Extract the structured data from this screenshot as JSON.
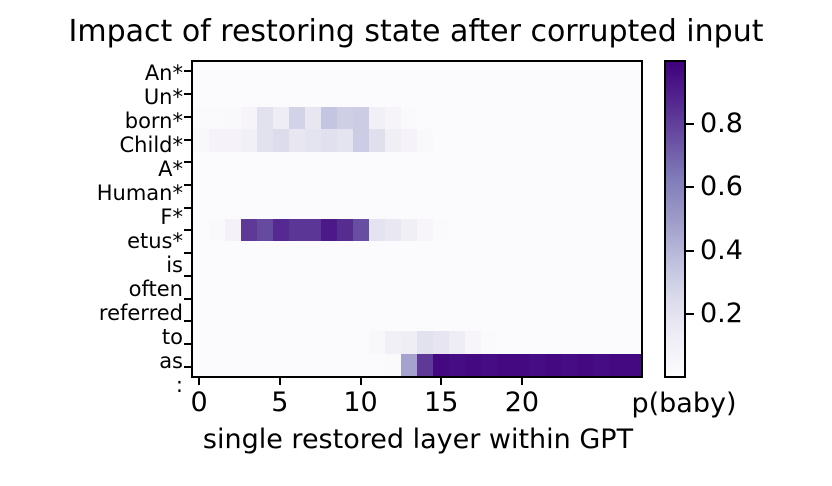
{
  "chart_data": {
    "type": "heatmap",
    "title": "Impact of restoring state after corrupted input",
    "xlabel": "single restored layer within GPT",
    "colorbar_label": "p(baby)",
    "x_ticks": [
      0,
      5,
      10,
      15,
      20
    ],
    "colorbar_ticks": [
      0.2,
      0.4,
      0.6,
      0.8
    ],
    "n_layers": 28,
    "xlim": [
      -0.5,
      27.5
    ],
    "vmin": 0.0,
    "vmax": 1.0,
    "grid": false,
    "legend_position": "colorbar-right",
    "rows": [
      "An*",
      "Un*",
      "born*",
      "Child*",
      "A*",
      "Human*",
      "F*",
      "etus*",
      "is",
      "often",
      "referred",
      "to",
      "as",
      ":"
    ],
    "values": [
      [
        0.01,
        0.01,
        0.01,
        0.01,
        0.01,
        0.01,
        0.01,
        0.01,
        0.01,
        0.01,
        0.01,
        0.01,
        0.01,
        0.01,
        0.01,
        0.01,
        0.01,
        0.01,
        0.01,
        0.01,
        0.01,
        0.01,
        0.01,
        0.01,
        0.01,
        0.01,
        0.01,
        0.01
      ],
      [
        0.01,
        0.01,
        0.01,
        0.01,
        0.01,
        0.01,
        0.01,
        0.01,
        0.01,
        0.01,
        0.01,
        0.01,
        0.01,
        0.01,
        0.01,
        0.01,
        0.01,
        0.01,
        0.01,
        0.01,
        0.01,
        0.01,
        0.01,
        0.01,
        0.01,
        0.01,
        0.01,
        0.01
      ],
      [
        0.02,
        0.02,
        0.03,
        0.06,
        0.2,
        0.13,
        0.28,
        0.17,
        0.34,
        0.3,
        0.31,
        0.1,
        0.06,
        0.02,
        0.01,
        0.01,
        0.01,
        0.01,
        0.01,
        0.01,
        0.01,
        0.01,
        0.01,
        0.01,
        0.01,
        0.01,
        0.01,
        0.01
      ],
      [
        0.04,
        0.07,
        0.07,
        0.1,
        0.2,
        0.24,
        0.17,
        0.19,
        0.21,
        0.19,
        0.31,
        0.22,
        0.11,
        0.07,
        0.03,
        0.01,
        0.01,
        0.01,
        0.01,
        0.01,
        0.01,
        0.01,
        0.01,
        0.01,
        0.01,
        0.01,
        0.01,
        0.01
      ],
      [
        0.01,
        0.01,
        0.01,
        0.01,
        0.01,
        0.01,
        0.01,
        0.01,
        0.01,
        0.01,
        0.01,
        0.01,
        0.01,
        0.01,
        0.01,
        0.01,
        0.01,
        0.01,
        0.01,
        0.01,
        0.01,
        0.01,
        0.01,
        0.01,
        0.01,
        0.01,
        0.01,
        0.01
      ],
      [
        0.01,
        0.01,
        0.01,
        0.01,
        0.01,
        0.01,
        0.01,
        0.01,
        0.01,
        0.01,
        0.01,
        0.01,
        0.01,
        0.01,
        0.01,
        0.01,
        0.01,
        0.01,
        0.01,
        0.01,
        0.01,
        0.01,
        0.01,
        0.01,
        0.01,
        0.01,
        0.01,
        0.01
      ],
      [
        0.01,
        0.01,
        0.01,
        0.01,
        0.01,
        0.01,
        0.01,
        0.01,
        0.01,
        0.01,
        0.01,
        0.01,
        0.01,
        0.01,
        0.01,
        0.01,
        0.01,
        0.01,
        0.01,
        0.01,
        0.01,
        0.01,
        0.01,
        0.01,
        0.01,
        0.01,
        0.01,
        0.01
      ],
      [
        0.01,
        0.03,
        0.08,
        0.82,
        0.77,
        0.87,
        0.83,
        0.83,
        0.92,
        0.86,
        0.76,
        0.19,
        0.16,
        0.11,
        0.05,
        0.02,
        0.01,
        0.01,
        0.01,
        0.01,
        0.01,
        0.01,
        0.01,
        0.01,
        0.01,
        0.01,
        0.01,
        0.01
      ],
      [
        0.01,
        0.01,
        0.01,
        0.01,
        0.01,
        0.01,
        0.01,
        0.01,
        0.01,
        0.01,
        0.01,
        0.01,
        0.01,
        0.01,
        0.01,
        0.01,
        0.01,
        0.01,
        0.01,
        0.01,
        0.01,
        0.01,
        0.01,
        0.01,
        0.01,
        0.01,
        0.01,
        0.01
      ],
      [
        0.01,
        0.01,
        0.01,
        0.01,
        0.01,
        0.01,
        0.01,
        0.01,
        0.01,
        0.01,
        0.01,
        0.01,
        0.01,
        0.01,
        0.01,
        0.01,
        0.01,
        0.01,
        0.01,
        0.01,
        0.01,
        0.01,
        0.01,
        0.01,
        0.01,
        0.01,
        0.01,
        0.01
      ],
      [
        0.01,
        0.01,
        0.01,
        0.01,
        0.01,
        0.01,
        0.01,
        0.01,
        0.01,
        0.01,
        0.01,
        0.01,
        0.01,
        0.01,
        0.01,
        0.01,
        0.01,
        0.01,
        0.01,
        0.01,
        0.01,
        0.01,
        0.01,
        0.01,
        0.01,
        0.01,
        0.01,
        0.01
      ],
      [
        0.01,
        0.01,
        0.01,
        0.01,
        0.01,
        0.01,
        0.01,
        0.01,
        0.01,
        0.01,
        0.01,
        0.01,
        0.01,
        0.01,
        0.01,
        0.01,
        0.01,
        0.01,
        0.01,
        0.01,
        0.01,
        0.01,
        0.01,
        0.01,
        0.01,
        0.01,
        0.01,
        0.01
      ],
      [
        0.01,
        0.01,
        0.01,
        0.01,
        0.01,
        0.01,
        0.01,
        0.01,
        0.01,
        0.01,
        0.01,
        0.04,
        0.1,
        0.12,
        0.2,
        0.18,
        0.13,
        0.05,
        0.02,
        0.01,
        0.01,
        0.01,
        0.01,
        0.01,
        0.01,
        0.01,
        0.01,
        0.01
      ],
      [
        0.01,
        0.01,
        0.01,
        0.01,
        0.01,
        0.01,
        0.01,
        0.01,
        0.01,
        0.01,
        0.01,
        0.01,
        0.02,
        0.47,
        0.82,
        0.97,
        0.96,
        0.97,
        0.96,
        0.97,
        0.97,
        0.96,
        0.97,
        0.96,
        0.97,
        0.96,
        0.97,
        0.97
      ]
    ],
    "colormap": {
      "name": "Purples",
      "stops": [
        {
          "pos": 0.0,
          "color": "#fcfbfd"
        },
        {
          "pos": 0.125,
          "color": "#efedf5"
        },
        {
          "pos": 0.25,
          "color": "#dadaeb"
        },
        {
          "pos": 0.375,
          "color": "#bcbddc"
        },
        {
          "pos": 0.5,
          "color": "#9e9ac8"
        },
        {
          "pos": 0.625,
          "color": "#807dba"
        },
        {
          "pos": 0.75,
          "color": "#6a51a3"
        },
        {
          "pos": 0.875,
          "color": "#54278f"
        },
        {
          "pos": 1.0,
          "color": "#3f007d"
        }
      ]
    },
    "tick_color": "#000000",
    "plot_border_color": "#000000",
    "background_color": "#ffffff"
  }
}
